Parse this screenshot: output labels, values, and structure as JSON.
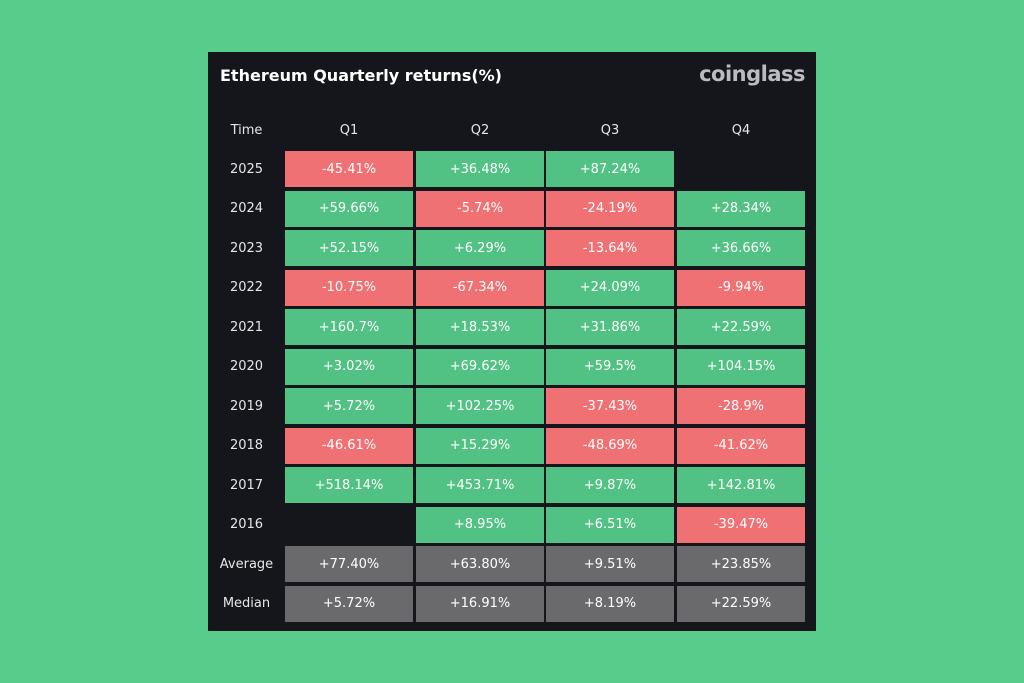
{
  "header": {
    "title": "Ethereum Quarterly returns(%)",
    "brand": "coinglass"
  },
  "colors": {
    "background": "#57cc8b",
    "panel": "#14161b",
    "positive": "#52c184",
    "negative": "#f07174",
    "summary": "#6a6a6c"
  },
  "table": {
    "columns": [
      "Time",
      "Q1",
      "Q2",
      "Q3",
      "Q4"
    ],
    "rows": [
      [
        "2025",
        "-45.41%",
        "+36.48%",
        "+87.24%",
        null
      ],
      [
        "2024",
        "+59.66%",
        "-5.74%",
        "-24.19%",
        "+28.34%"
      ],
      [
        "2023",
        "+52.15%",
        "+6.29%",
        "-13.64%",
        "+36.66%"
      ],
      [
        "2022",
        "-10.75%",
        "-67.34%",
        "+24.09%",
        "-9.94%"
      ],
      [
        "2021",
        "+160.7%",
        "+18.53%",
        "+31.86%",
        "+22.59%"
      ],
      [
        "2020",
        "+3.02%",
        "+69.62%",
        "+59.5%",
        "+104.15%"
      ],
      [
        "2019",
        "+5.72%",
        "+102.25%",
        "-37.43%",
        "-28.9%"
      ],
      [
        "2018",
        "-46.61%",
        "+15.29%",
        "-48.69%",
        "-41.62%"
      ],
      [
        "2017",
        "+518.14%",
        "+453.71%",
        "+9.87%",
        "+142.81%"
      ],
      [
        "2016",
        null,
        "+8.95%",
        "+6.51%",
        "-39.47%"
      ]
    ],
    "summary_rows": [
      [
        "Average",
        "+77.40%",
        "+63.80%",
        "+9.51%",
        "+23.85%"
      ],
      [
        "Median",
        "+5.72%",
        "+16.91%",
        "+8.19%",
        "+22.59%"
      ]
    ]
  }
}
